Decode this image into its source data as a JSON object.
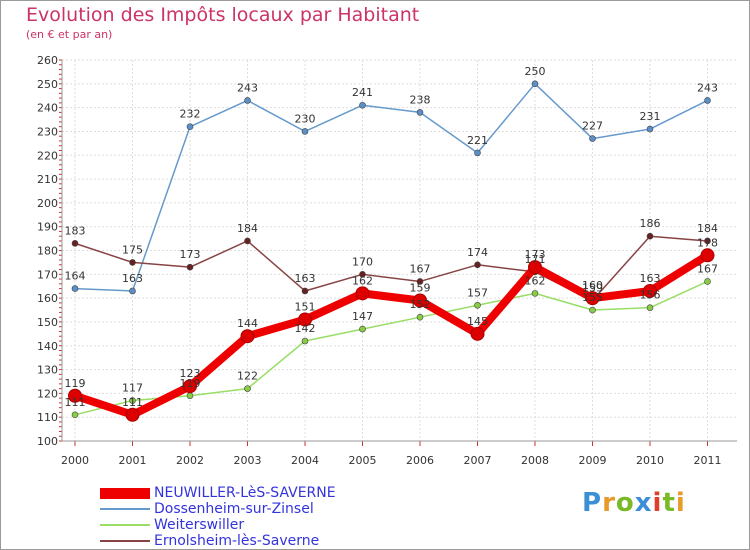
{
  "header": {
    "title": "Evolution des Impôts locaux par Habitant",
    "subtitle": "(en € et par an)"
  },
  "logo": {
    "text": "Proxiti",
    "colors": [
      "#3b8fd6",
      "#e89a2a",
      "#7ab928",
      "#3b8fd6",
      "#e0402a",
      "#7ab928",
      "#e89a2a"
    ]
  },
  "chart_data": {
    "type": "line",
    "title": "Evolution des Impôts locaux par Habitant",
    "subtitle": "(en € et par an)",
    "xlabel": "",
    "ylabel": "",
    "x": [
      "2000",
      "2001",
      "2002",
      "2003",
      "2004",
      "2005",
      "2006",
      "2007",
      "2008",
      "2009",
      "2010",
      "2011"
    ],
    "y_ticks": [
      100,
      110,
      120,
      130,
      140,
      150,
      160,
      170,
      180,
      190,
      200,
      210,
      220,
      230,
      240,
      250,
      260
    ],
    "ylim": [
      100,
      260
    ],
    "grid": true,
    "legend_position": "bottom-left",
    "series": [
      {
        "name": "NEUWILLER-LèS-SAVERNE",
        "color": "#ee0000",
        "marker_color": "#dd0000",
        "emphasis": true,
        "values": [
          119,
          111,
          123,
          144,
          151,
          162,
          159,
          145,
          173,
          160,
          163,
          178
        ]
      },
      {
        "name": "Dossenheim-sur-Zinsel",
        "color": "#6699cc",
        "marker_color": "#5a8fc8",
        "emphasis": false,
        "values": [
          164,
          163,
          232,
          243,
          230,
          241,
          238,
          221,
          250,
          227,
          231,
          243
        ]
      },
      {
        "name": "Weiterswiller",
        "color": "#99dd66",
        "marker_color": "#88cc44",
        "emphasis": false,
        "values": [
          111,
          117,
          119,
          122,
          142,
          147,
          152,
          157,
          162,
          155,
          156,
          167
        ]
      },
      {
        "name": "Ernolsheim-lès-Saverne",
        "color": "#884444",
        "marker_color": "#662222",
        "emphasis": false,
        "values": [
          183,
          175,
          173,
          184,
          163,
          170,
          167,
          174,
          171,
          159,
          186,
          184
        ]
      }
    ]
  }
}
